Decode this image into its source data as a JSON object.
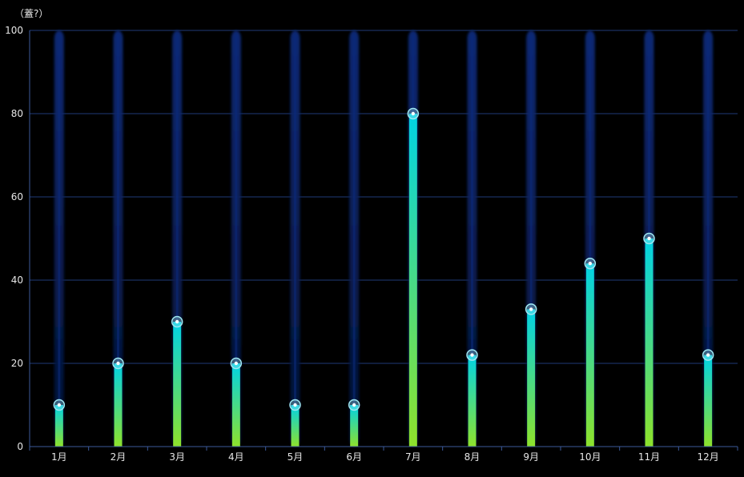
{
  "chart_data": {
    "type": "bar",
    "unit_label": "（蓋?）",
    "categories": [
      "1月",
      "2月",
      "3月",
      "4月",
      "5月",
      "6月",
      "7月",
      "8月",
      "9月",
      "10月",
      "11月",
      "12月"
    ],
    "values": [
      10,
      20,
      30,
      20,
      10,
      10,
      80,
      22,
      33,
      44,
      50,
      22
    ],
    "background_max": 100,
    "ylim": [
      0,
      100
    ],
    "yticks": [
      0,
      20,
      40,
      60,
      80,
      100
    ],
    "grid": true,
    "legend": "none",
    "colors": {
      "background": "#000000",
      "grid": "#1f3a78",
      "axis": "#3b5a9a",
      "text": "#e6e6e6",
      "bar_top": "#00d2e6",
      "bar_bottom": "#8ee22b",
      "track_top": "#0b2a7a",
      "track_bottom": "#051436",
      "marker_fill": "#9fe8f2",
      "marker_center": "#ffffff"
    }
  }
}
